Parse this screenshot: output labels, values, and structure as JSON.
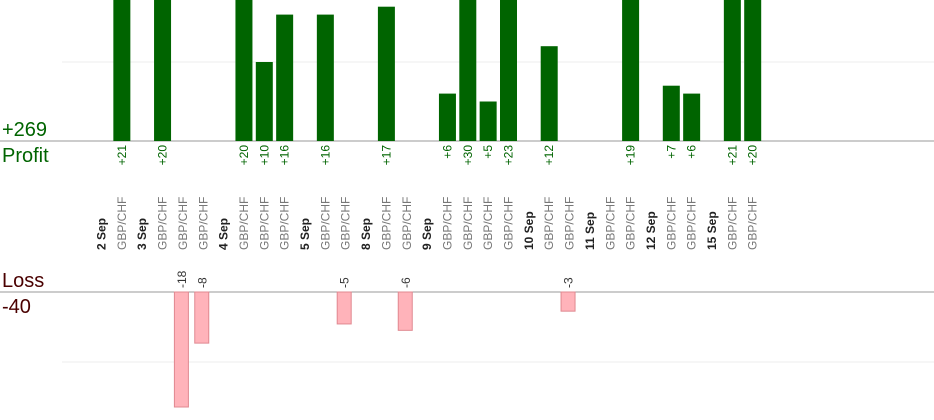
{
  "summary": {
    "profit_total": "+269",
    "profit_label": "Profit",
    "loss_label": "Loss",
    "loss_total": "-40"
  },
  "colors": {
    "profit_bar": "#006400",
    "loss_bar": "#ffb3ba",
    "loss_bar_stroke": "#e08890",
    "axis": "#999999",
    "grid": "#eeeeee"
  },
  "chart_data": {
    "type": "bar",
    "profit_scale_max": 17.5,
    "loss_scale_max": 18,
    "columns": [
      {
        "date": "2 Sep"
      },
      {
        "pair": "GBP/CHF",
        "value": 21,
        "label": "+21"
      },
      {
        "date": "3 Sep"
      },
      {
        "pair": "GBP/CHF",
        "value": 20,
        "label": "+20"
      },
      {
        "pair": "GBP/CHF",
        "value": -18,
        "label": "-18"
      },
      {
        "pair": "GBP/CHF",
        "value": -8,
        "label": "-8"
      },
      {
        "date": "4 Sep"
      },
      {
        "pair": "GBP/CHF",
        "value": 20,
        "label": "+20"
      },
      {
        "pair": "GBP/CHF",
        "value": 10,
        "label": "+10"
      },
      {
        "pair": "GBP/CHF",
        "value": 16,
        "label": "+16"
      },
      {
        "date": "5 Sep"
      },
      {
        "pair": "GBP/CHF",
        "value": 16,
        "label": "+16"
      },
      {
        "pair": "GBP/CHF",
        "value": -5,
        "label": "-5"
      },
      {
        "date": "8 Sep"
      },
      {
        "pair": "GBP/CHF",
        "value": 17,
        "label": "+17"
      },
      {
        "pair": "GBP/CHF",
        "value": -6,
        "label": "-6"
      },
      {
        "date": "9 Sep"
      },
      {
        "pair": "GBP/CHF",
        "value": 6,
        "label": "+6"
      },
      {
        "pair": "GBP/CHF",
        "value": 30,
        "label": "+30"
      },
      {
        "pair": "GBP/CHF",
        "value": 5,
        "label": "+5"
      },
      {
        "pair": "GBP/CHF",
        "value": 23,
        "label": "+23"
      },
      {
        "date": "10 Sep"
      },
      {
        "pair": "GBP/CHF",
        "value": 12,
        "label": "+12"
      },
      {
        "pair": "GBP/CHF",
        "value": -3,
        "label": "-3"
      },
      {
        "date": "11 Sep"
      },
      {
        "pair": "GBP/CHF"
      },
      {
        "pair": "GBP/CHF",
        "value": 19,
        "label": "+19"
      },
      {
        "date": "12 Sep"
      },
      {
        "pair": "GBP/CHF",
        "value": 7,
        "label": "+7"
      },
      {
        "pair": "GBP/CHF",
        "value": 6,
        "label": "+6"
      },
      {
        "date": "15 Sep"
      },
      {
        "pair": "GBP/CHF",
        "value": 21,
        "label": "+21"
      },
      {
        "pair": "GBP/CHF",
        "value": 20,
        "label": "+20"
      }
    ]
  }
}
